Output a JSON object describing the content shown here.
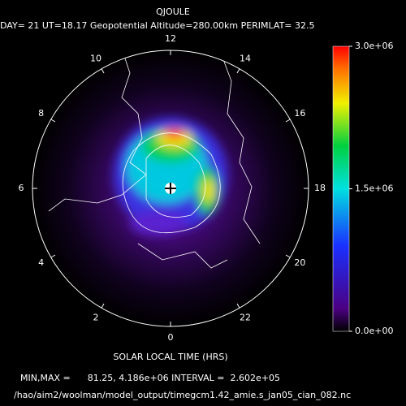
{
  "header": {
    "title": "QJOULE",
    "subtitle": "DAY= 21 UT=18.17 Geopotential Altitude=280.00km PERIMLAT= 32.5"
  },
  "local_time_ticks": [
    0,
    2,
    4,
    6,
    8,
    10,
    12,
    14,
    16,
    18,
    20,
    22
  ],
  "axis_label": "SOLAR LOCAL TIME (HRS)",
  "colorbar": {
    "lim": [
      0,
      3000000
    ],
    "ticks": [
      {
        "value": 0,
        "label": "0.0e+00"
      },
      {
        "value": 1500000,
        "label": "1.5e+06"
      },
      {
        "value": 3000000,
        "label": "3.0e+06"
      }
    ]
  },
  "footer": {
    "stats": "MIN,MAX =      81.25, 4.186e+06 INTERVAL =  2.602e+05",
    "file": "/hao/aim2/woolman/model_output/timegcm1.42_amie.s_jan05_cian_082.nc"
  }
}
